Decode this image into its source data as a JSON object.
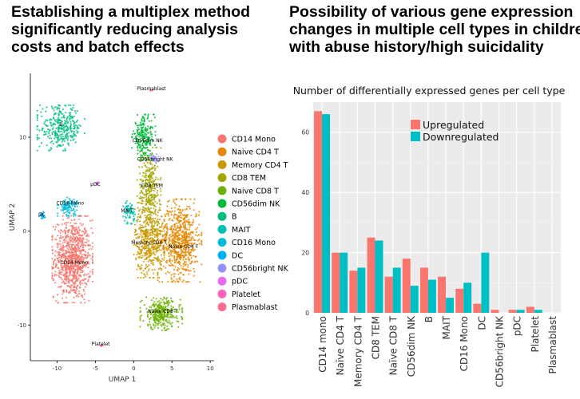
{
  "left_heading": {
    "lines": [
      "Establishing a multiplex method",
      "significantly reducing analysis",
      "costs and batch effects"
    ]
  },
  "right_heading": {
    "lines": [
      "Possibility of various gene expression",
      "changes in multiple cell types in children",
      "with abuse history/high suicidality"
    ]
  },
  "chart_data": [
    {
      "type": "scatter",
      "xlabel": "UMAP 1",
      "ylabel": "UMAP 2",
      "x_ticks": [
        -10,
        -5,
        0,
        5,
        10
      ],
      "y_ticks": [
        10,
        0,
        -10
      ],
      "xlim": [
        -13.5,
        10.5
      ],
      "ylim": [
        -13.8,
        16.8
      ],
      "legend_position": "right",
      "clusters": [
        {
          "name": "CD14 Mono",
          "color": "#F8766D",
          "label": "CD14 Mono",
          "label_x": -7.8,
          "label_y": -3.5,
          "center": [
            -8,
            -3
          ],
          "spread": [
            2.4,
            4.2
          ],
          "n": 900
        },
        {
          "name": "Naive CD4 T",
          "color": "#E58700",
          "label": "Naive CD4 T",
          "label_x": 6.5,
          "label_y": -1.8,
          "center": [
            6.0,
            -1.0
          ],
          "spread": [
            2.6,
            4.0
          ],
          "n": 700
        },
        {
          "name": "Memory CD4 T",
          "color": "#C99800",
          "label": "Memory CD4 T",
          "label_x": 2.0,
          "label_y": -1.4,
          "center": [
            2.0,
            -1.0
          ],
          "spread": [
            1.8,
            3.6
          ],
          "n": 450
        },
        {
          "name": "CD8 TEM",
          "color": "#A3A500",
          "label": "CD8 TEM",
          "label_x": 2.4,
          "label_y": 4.7,
          "center": [
            2.0,
            4.5
          ],
          "spread": [
            1.4,
            4.0
          ],
          "n": 320
        },
        {
          "name": "Naive CD8 T",
          "color": "#6BB100",
          "label": "Naive CD8 T",
          "label_x": 3.8,
          "label_y": -8.7,
          "center": [
            3.6,
            -8.8
          ],
          "spread": [
            2.5,
            1.6
          ],
          "n": 330
        },
        {
          "name": "CD56dim NK",
          "color": "#00BA38",
          "label": "CD56dim NK",
          "label_x": 1.8,
          "label_y": 9.5,
          "center": [
            1.3,
            10.0
          ],
          "spread": [
            1.4,
            2.2
          ],
          "n": 220
        },
        {
          "name": "B",
          "color": "#00BF7D",
          "label": "B",
          "label_x": -9.5,
          "label_y": 11.2,
          "center": [
            -9.5,
            11.0
          ],
          "spread": [
            2.8,
            2.2
          ],
          "n": 320
        },
        {
          "name": "MAIT",
          "color": "#00C0AF",
          "label": "MAIT",
          "label_x": -0.9,
          "label_y": 2.0,
          "center": [
            -0.6,
            2.0
          ],
          "spread": [
            0.7,
            1.1
          ],
          "n": 70
        },
        {
          "name": "CD16 Mono",
          "color": "#00BCD8",
          "label": "CD16 Mono",
          "label_x": -8.3,
          "label_y": 2.8,
          "center": [
            -8.5,
            2.6
          ],
          "spread": [
            1.3,
            0.9
          ],
          "n": 110
        },
        {
          "name": "DC",
          "color": "#00B0F6",
          "label": "DC",
          "label_x": -12.0,
          "label_y": 1.6,
          "center": [
            -12.0,
            1.7
          ],
          "spread": [
            0.4,
            0.4
          ],
          "n": 25
        },
        {
          "name": "CD56bright NK",
          "color": "#9590FF",
          "label": "CD56bright NK",
          "label_x": 2.8,
          "label_y": 7.5,
          "center": [
            2.7,
            7.8
          ],
          "spread": [
            0.6,
            0.5
          ],
          "n": 30
        },
        {
          "name": "pDC",
          "color": "#E76BF3",
          "label": "pDC",
          "label_x": -5.0,
          "label_y": 4.8,
          "center": [
            -4.8,
            5.1
          ],
          "spread": [
            0.15,
            0.15
          ],
          "n": 12
        },
        {
          "name": "Platelet",
          "color": "#FF62BC",
          "label": "Platelet",
          "label_x": -4.3,
          "label_y": -12.2,
          "center": [
            -4.2,
            -12.2
          ],
          "spread": [
            0.15,
            0.1
          ],
          "n": 8
        },
        {
          "name": "Plasmablast",
          "color": "#FF6C91",
          "label": "Plasmablast",
          "label_x": 2.3,
          "label_y": 15.0,
          "center": [
            2.3,
            15.0
          ],
          "spread": [
            0.15,
            0.1
          ],
          "n": 5
        }
      ]
    },
    {
      "type": "bar",
      "title": "Number of differentially expressed genes per cell type",
      "categories": [
        "CD14 mono",
        "Naïve CD4 T",
        "Memory CD4 T",
        "CD8 TEM",
        "Naïve CD8 T",
        "CD56dim NK",
        "B",
        "MAIT",
        "CD16 Mono",
        "DC",
        "CD56bright NK",
        "pDC",
        "Platelet",
        "Plasmablast"
      ],
      "series": [
        {
          "name": "Upregulated",
          "color": "#F8766D",
          "values": [
            67,
            20,
            14,
            25,
            12,
            18,
            15,
            12,
            8,
            3,
            1,
            1,
            2,
            0
          ]
        },
        {
          "name": "Downregulated",
          "color": "#00BFC4",
          "values": [
            66,
            20,
            15,
            24,
            15,
            9,
            11,
            5,
            10,
            20,
            0,
            1,
            1,
            0
          ]
        }
      ],
      "y_ticks": [
        0,
        20,
        40,
        60
      ],
      "ylim": [
        0,
        70
      ],
      "grid": true,
      "legend_position": "top-right"
    }
  ]
}
